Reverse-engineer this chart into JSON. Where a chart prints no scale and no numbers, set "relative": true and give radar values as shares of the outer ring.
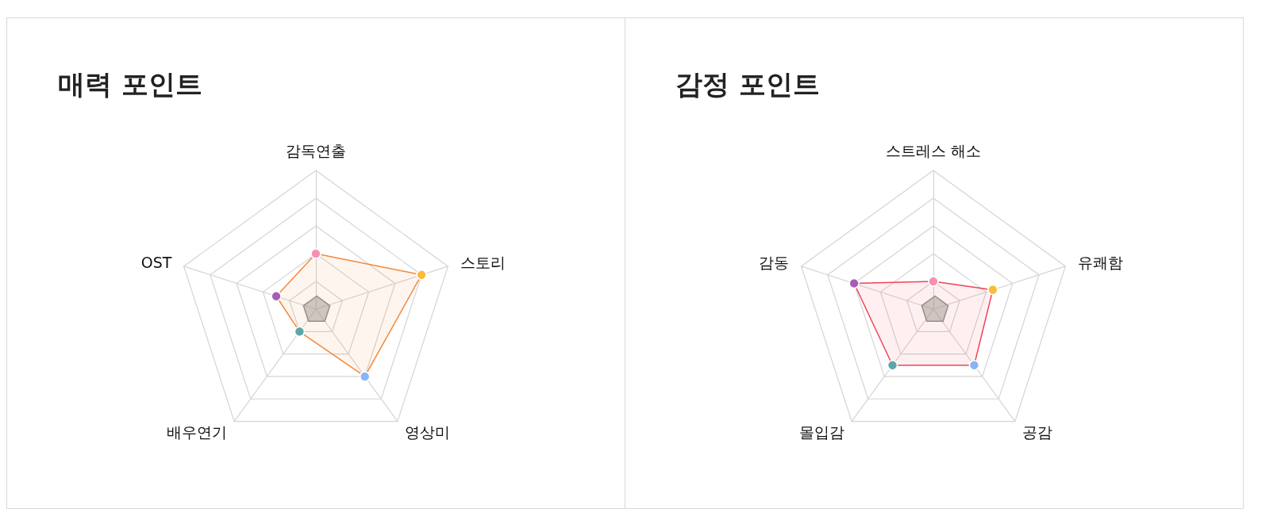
{
  "chart_data": [
    {
      "type": "radar",
      "title": "매력 포인트",
      "categories": [
        "감독연출",
        "스토리",
        "영상미",
        "배우연기",
        "OST"
      ],
      "relative": true,
      "marker": "circle",
      "series": [
        {
          "color": "#f5883a",
          "colors": [
            "#f78fb3",
            "#f9bc3a",
            "#8ab4f8",
            "#5da5a8",
            "#a55eb4"
          ],
          "values": [
            0.4,
            0.8,
            0.6,
            0.2,
            0.3
          ]
        }
      ]
    },
    {
      "type": "radar",
      "title": "감정 포인트",
      "categories": [
        "스트레스 해소",
        "유쾌함",
        "공감",
        "몰입감",
        "감동"
      ],
      "relative": true,
      "marker": "circle",
      "series": [
        {
          "color": "#f0435a",
          "colors": [
            "#f78fb3",
            "#f9bc3a",
            "#8ab4f8",
            "#5da5a8",
            "#a55eb4"
          ],
          "values": [
            0.2,
            0.45,
            0.5,
            0.5,
            0.6
          ]
        }
      ]
    }
  ]
}
